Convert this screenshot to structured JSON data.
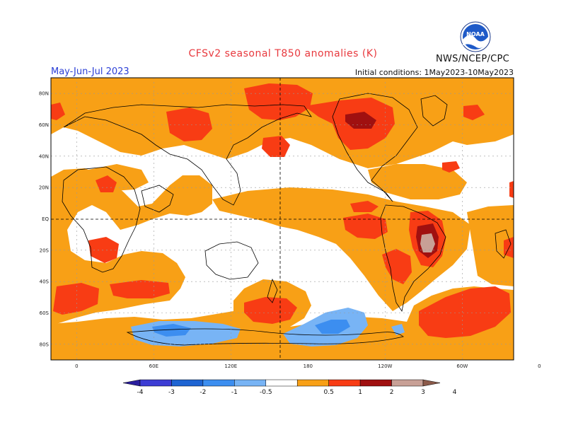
{
  "header": {
    "title": "CFSv2 seasonal T850 anomalies (K)",
    "agency": "NWS/NCEP/CPC",
    "season": "May-Jun-Jul 2023",
    "initial_conditions": "Initial conditions: 1May2023-10May2023",
    "logo_text": "NOAA"
  },
  "map": {
    "projection": "equirectangular",
    "lon_range": [
      -20,
      340
    ],
    "lat_range": [
      -90,
      90
    ],
    "lat_labels": [
      "80N",
      "60N",
      "40N",
      "20N",
      "EQ",
      "20S",
      "40S",
      "60S",
      "80S"
    ],
    "lon_labels": [
      "0",
      "60E",
      "120E",
      "180",
      "120W",
      "60W",
      "0"
    ],
    "gridlines": "dotted",
    "reference_lines": [
      "EQ",
      "180"
    ]
  },
  "legend": {
    "labels": [
      "-4",
      "-3",
      "-2",
      "-1",
      "-0.5",
      "0.5",
      "1",
      "2",
      "3",
      "4"
    ],
    "colors": [
      "#2a1e9e",
      "#3d3dd4",
      "#1e64d2",
      "#3c8ef0",
      "#78b4f5",
      "#ffffff",
      "#f8a016",
      "#f83c14",
      "#a01010",
      "#c8a096",
      "#8c5a4a"
    ]
  },
  "colors": {
    "c_0_5": "#f8a016",
    "c_1": "#f83c14",
    "c_2": "#a01010",
    "c_3": "#c8a096",
    "c_neg_0_5": "#78b4f5",
    "c_neg_1": "#3c8ef0",
    "title": "#e8383d",
    "season": "#2b3fd6"
  }
}
